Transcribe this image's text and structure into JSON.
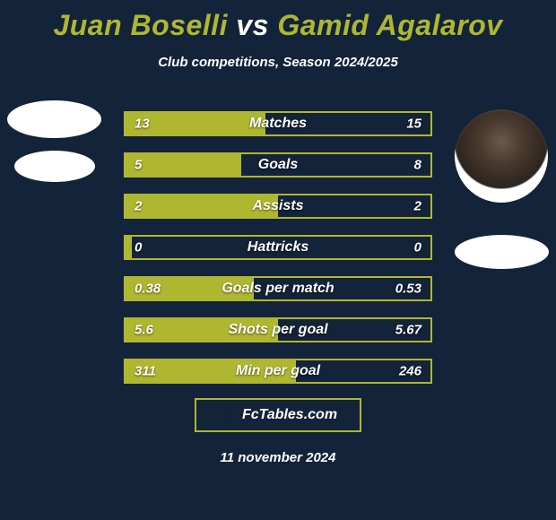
{
  "colors": {
    "background": "#13233a",
    "accent": "#afb730",
    "text": "#ffffff"
  },
  "title": {
    "player1": "Juan Boselli",
    "vs": "vs",
    "player2": "Gamid Agalarov",
    "fontsize": 32
  },
  "subtitle": "Club competitions, Season 2024/2025",
  "stats": {
    "bar_border_color": "#afb730",
    "bar_fill_color": "#afb730",
    "bar_bg_color": "#13233a",
    "value_color": "#ffffff",
    "label_fontsize": 16,
    "value_fontsize": 15,
    "rows": [
      {
        "label": "Matches",
        "left": "13",
        "right": "15",
        "fill_pct": 46
      },
      {
        "label": "Goals",
        "left": "5",
        "right": "8",
        "fill_pct": 38
      },
      {
        "label": "Assists",
        "left": "2",
        "right": "2",
        "fill_pct": 50
      },
      {
        "label": "Hattricks",
        "left": "0",
        "right": "0",
        "fill_pct": 2
      },
      {
        "label": "Goals per match",
        "left": "0.38",
        "right": "0.53",
        "fill_pct": 42
      },
      {
        "label": "Shots per goal",
        "left": "5.6",
        "right": "5.67",
        "fill_pct": 50
      },
      {
        "label": "Min per goal",
        "left": "311",
        "right": "246",
        "fill_pct": 56
      }
    ]
  },
  "footer": {
    "brand": "FcTables.com",
    "icon": "bar-chart-icon"
  },
  "date": "11 november 2024"
}
